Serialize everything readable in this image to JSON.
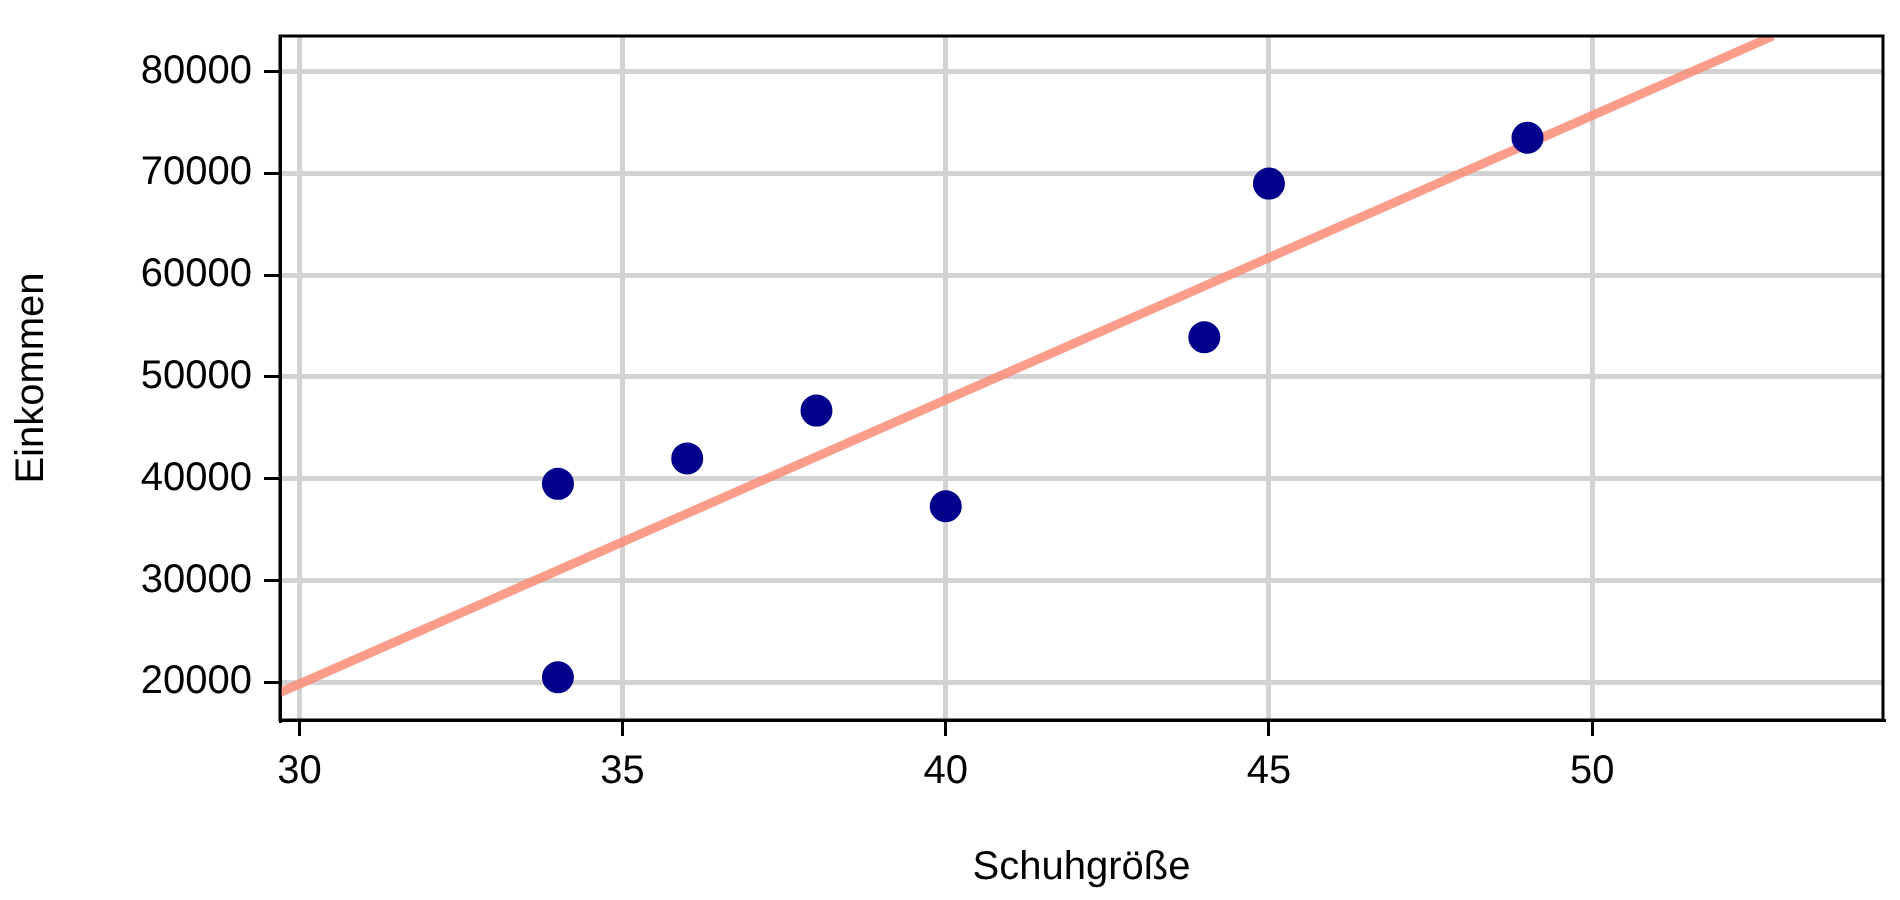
{
  "chart_data": {
    "type": "scatter",
    "xlabel": "Schuhgröße",
    "ylabel": "Einkommen",
    "xlim": [
      29.7,
      54.5
    ],
    "xticks": [
      30,
      35,
      40,
      45,
      50
    ],
    "ylim": [
      16300,
      83500
    ],
    "yticks": [
      20000,
      30000,
      40000,
      50000,
      60000,
      70000,
      80000
    ],
    "grid": true,
    "legend": false,
    "marker": "circle",
    "series": [
      {
        "type": "scatter",
        "color": "#00008b",
        "x": [
          34,
          34,
          36,
          38,
          40,
          44,
          45,
          49
        ],
        "values": [
          20500,
          39500,
          42000,
          46700,
          37300,
          53900,
          69000,
          73500
        ]
      },
      {
        "type": "line",
        "color": "#fa8e78",
        "marker": "none",
        "line_style": "solid",
        "x": [
          29.7,
          52.8
        ],
        "values": [
          19000,
          83500
        ]
      }
    ]
  }
}
